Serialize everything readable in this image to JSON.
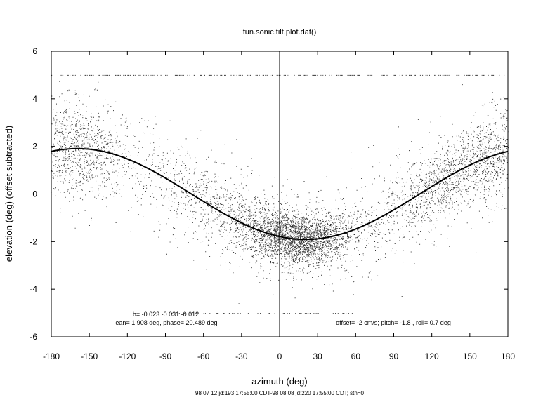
{
  "chart_data": {
    "type": "scatter",
    "title": "fun.sonic.tilt.plot.dat()",
    "xlabel": "azimuth (deg)",
    "ylabel": "elevation (deg)  (offset subtracted)",
    "xlim": [
      -180,
      180
    ],
    "ylim": [
      -6,
      6
    ],
    "x_ticks": [
      -180,
      -150,
      -120,
      -90,
      -60,
      -30,
      0,
      30,
      60,
      90,
      120,
      150,
      180
    ],
    "y_ticks": [
      -6,
      -4,
      -2,
      0,
      2,
      4,
      6
    ],
    "reference_lines": {
      "x": 0,
      "y": 0
    },
    "grid": false,
    "series": [
      {
        "kind": "fit_curve",
        "amplitude_deg": 1.908,
        "phase_deg": 20.489,
        "formula": "elevation = -amplitude * cos(azimuth - phase)"
      },
      {
        "kind": "scatter_cloud",
        "description_points": "dense point cloud centred on fit curve, densest near azimuth 0-30 and around +/-150, with scattered points clipped at elevation +5 and -5"
      }
    ],
    "annotations": {
      "b_line": "b= -0.023  -0.031  -0.012",
      "lean_line": "lean= 1.908 deg, phase= 20.489 deg",
      "offset_line": "offset= -2 cm/s; pitch= -1.8 ,  roll=  0.7 deg",
      "footer": "98 07 12 jd:193 17:55:00 CDT-98 08 08 jd:220 17:55:00 CDT; stn=0"
    }
  }
}
